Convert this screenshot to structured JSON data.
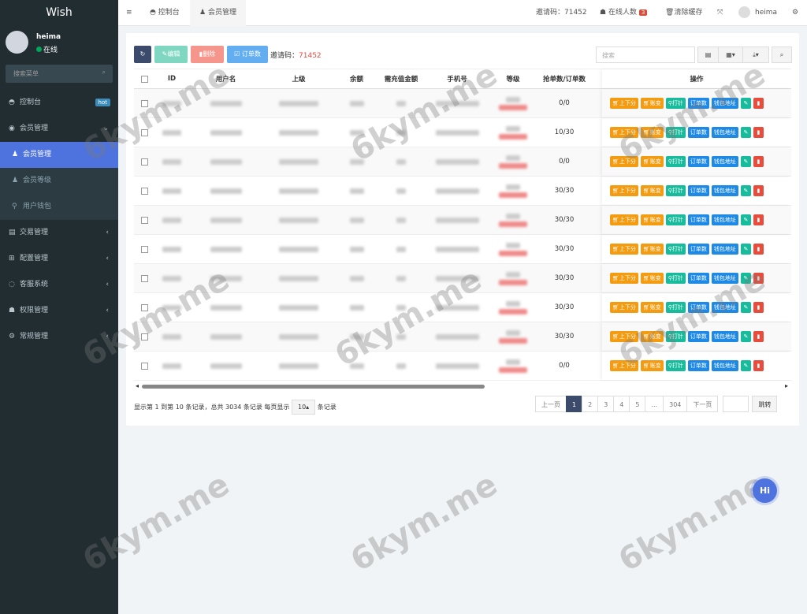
{
  "sidebar": {
    "logo": "Wish",
    "user": {
      "name": "heima",
      "status": "在线"
    },
    "search_placeholder": "搜索菜单",
    "items": [
      {
        "label": "控制台",
        "icon": "dashboard-icon",
        "badge": "hot"
      },
      {
        "label": "会员管理",
        "icon": "user-circle-icon"
      },
      {
        "label": "交易管理",
        "icon": "list-icon"
      },
      {
        "label": "配置管理",
        "icon": "windows-icon"
      },
      {
        "label": "客服系统",
        "icon": "chat-icon"
      },
      {
        "label": "权限管理",
        "icon": "group-icon"
      },
      {
        "label": "常规管理",
        "icon": "cogs-icon"
      }
    ],
    "sub_items": [
      {
        "label": "会员管理",
        "active": true
      },
      {
        "label": "会员等级"
      },
      {
        "label": "用户钱包"
      }
    ]
  },
  "topbar": {
    "tabs": [
      "控制台",
      "会员管理"
    ],
    "invite": "邀请码：71452",
    "online": "在线人数",
    "online_count": "3",
    "clear_cache": "清除缓存",
    "username": "heima"
  },
  "toolbar": {
    "edit": "编辑",
    "delete": "删除",
    "orders": "订单数",
    "invite_label": "邀请码：",
    "invite_code": "71452",
    "search_placeholder": "搜索"
  },
  "table": {
    "headers": [
      "ID",
      "用户名",
      "上级",
      "余额",
      "需充值金额",
      "手机号",
      "等级",
      "抢单数/订单数",
      "操作"
    ],
    "grab_orders": [
      "0/0",
      "10/30",
      "0/0",
      "30/30",
      "30/30",
      "30/30",
      "30/30",
      "30/30",
      "30/30",
      "0/0"
    ],
    "actions": [
      "上下分",
      "账变",
      "打针",
      "订单数",
      "钱包地址"
    ]
  },
  "footer": {
    "summary": "显示第 1 到第 10 条记录，总共 3034 条记录 每页显示",
    "page_size": "10",
    "suffix": "条记录"
  },
  "pagination": {
    "prev": "上一页",
    "pages": [
      "1",
      "2",
      "3",
      "4",
      "5",
      "...",
      "304"
    ],
    "current": "1",
    "next": "下一页",
    "jump": "跳转"
  },
  "watermark": "6kym.me",
  "chat_button": "Hi",
  "colors": {
    "sidebar": "#222d32",
    "accent": "#4e73df",
    "warning": "#f39c12",
    "success": "#18bc9c",
    "info": "#1f8ae6",
    "danger": "#e74c3c"
  }
}
